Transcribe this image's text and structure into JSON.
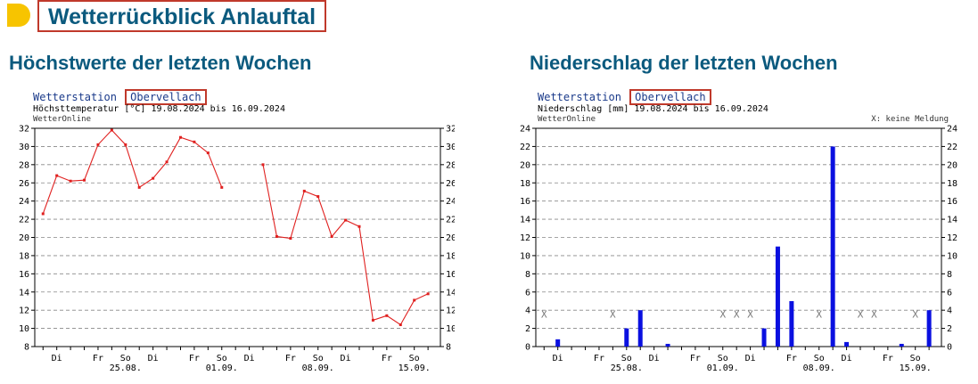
{
  "page": {
    "title": "Wetterrückblick Anlauftal",
    "accent_color": "#f7c400",
    "title_color": "#0b5a7e"
  },
  "temp_section": {
    "heading": "Höchstwerte der letzten Wochen",
    "station_label": "Wetterstation",
    "station_name": "Obervellach",
    "subtitle": "Höchsttemperatur [°C] 19.08.2024 bis 16.09.2024",
    "source": "WetterOnline"
  },
  "precip_section": {
    "heading": "Niederschlag der letzten Wochen",
    "station_label": "Wetterstation",
    "station_name": "Obervellach",
    "subtitle": "Niederschlag [mm] 19.08.2024 bis 16.09.2024",
    "source": "WetterOnline",
    "note": "X: keine Meldung"
  },
  "chart_data": [
    {
      "type": "line",
      "ylabel": "Höchsttemperatur [°C]",
      "ylim": [
        8,
        32
      ],
      "yticks": [
        8,
        10,
        12,
        14,
        16,
        18,
        20,
        22,
        24,
        26,
        28,
        30,
        32
      ],
      "grid": true,
      "color": "#e0201f",
      "day_count": 29,
      "x_weekday_labels": [
        {
          "day": 1,
          "label": "Di"
        },
        {
          "day": 4,
          "label": "Fr"
        },
        {
          "day": 6,
          "label": "So"
        },
        {
          "day": 8,
          "label": "Di"
        },
        {
          "day": 11,
          "label": "Fr"
        },
        {
          "day": 13,
          "label": "So"
        },
        {
          "day": 15,
          "label": "Di"
        },
        {
          "day": 18,
          "label": "Fr"
        },
        {
          "day": 20,
          "label": "So"
        },
        {
          "day": 22,
          "label": "Di"
        },
        {
          "day": 25,
          "label": "Fr"
        },
        {
          "day": 27,
          "label": "So"
        }
      ],
      "x_date_labels": [
        {
          "day": 6,
          "label": "25.08."
        },
        {
          "day": 13,
          "label": "01.09."
        },
        {
          "day": 20,
          "label": "08.09."
        },
        {
          "day": 27,
          "label": "15.09."
        }
      ],
      "values": [
        22.6,
        26.8,
        26.2,
        26.3,
        30.2,
        31.8,
        30.2,
        25.5,
        26.5,
        28.3,
        31.0,
        30.5,
        29.3,
        25.5,
        null,
        null,
        28.0,
        20.1,
        19.9,
        25.1,
        24.5,
        20.1,
        21.9,
        21.2,
        10.9,
        11.4,
        10.4,
        13.1,
        13.8
      ]
    },
    {
      "type": "bar",
      "ylabel": "Niederschlag [mm]",
      "ylim": [
        0,
        24
      ],
      "yticks": [
        0,
        2,
        4,
        6,
        8,
        10,
        12,
        14,
        16,
        18,
        20,
        22,
        24
      ],
      "grid": true,
      "color": "#0a10e0",
      "day_count": 29,
      "missing_marker": "X",
      "x_weekday_labels": [
        {
          "day": 1,
          "label": "Di"
        },
        {
          "day": 4,
          "label": "Fr"
        },
        {
          "day": 6,
          "label": "So"
        },
        {
          "day": 8,
          "label": "Di"
        },
        {
          "day": 11,
          "label": "Fr"
        },
        {
          "day": 13,
          "label": "So"
        },
        {
          "day": 15,
          "label": "Di"
        },
        {
          "day": 18,
          "label": "Fr"
        },
        {
          "day": 20,
          "label": "So"
        },
        {
          "day": 22,
          "label": "Di"
        },
        {
          "day": 25,
          "label": "Fr"
        },
        {
          "day": 27,
          "label": "So"
        }
      ],
      "x_date_labels": [
        {
          "day": 6,
          "label": "25.08."
        },
        {
          "day": 13,
          "label": "01.09."
        },
        {
          "day": 20,
          "label": "08.09."
        },
        {
          "day": 27,
          "label": "15.09."
        }
      ],
      "values": [
        null,
        0.8,
        0,
        0,
        0,
        null,
        2.0,
        4.0,
        0,
        0.3,
        0,
        0,
        0,
        null,
        null,
        null,
        2.0,
        11.0,
        5.0,
        0,
        null,
        22.0,
        0.5,
        null,
        null,
        0,
        0.3,
        null,
        4.0
      ]
    }
  ]
}
